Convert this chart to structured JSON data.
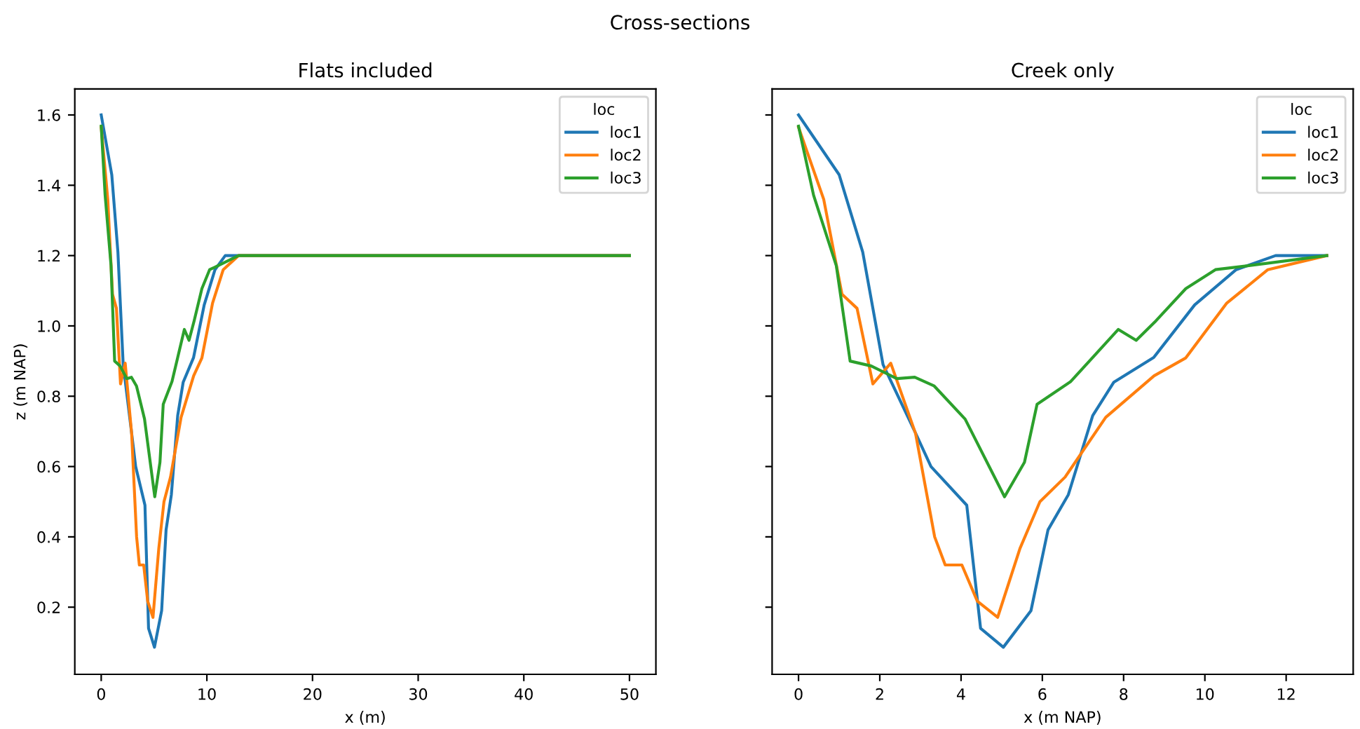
{
  "chart_data": [
    {
      "type": "line",
      "title": "Cross-sections",
      "subtitle": "Flats included",
      "xlabel": "x (m)",
      "ylabel": "z (m NAP)",
      "legend_title": "loc",
      "legend": "top right",
      "xlim": [
        -2.5,
        52.5
      ],
      "xticks": [
        0,
        10,
        20,
        30,
        40,
        50
      ],
      "ylim": [
        0.009,
        1.674
      ],
      "yticks": [
        0.2,
        0.4,
        0.6,
        0.8,
        {
          "value": 1,
          "label": "1.0"
        },
        1.2,
        1.4,
        1.6
      ],
      "series": [
        {
          "name": "loc1",
          "color": "#1f77b4",
          "x": [
            0,
            1.0,
            1.58,
            2.08,
            2.86,
            3.26,
            4.14,
            4.48,
            5.04,
            5.72,
            6.14,
            6.64,
            7.24,
            7.76,
            8.74,
            9.75,
            10.77,
            11.74,
            13.0,
            50
          ],
          "values": [
            1.6,
            1.43,
            1.21,
            0.89,
            0.7,
            0.6,
            0.49,
            0.14,
            0.086,
            0.19,
            0.42,
            0.52,
            0.745,
            0.84,
            0.91,
            1.06,
            1.16,
            1.2,
            1.2,
            1.2
          ]
        },
        {
          "name": "loc2",
          "color": "#ff7f0e",
          "x": [
            0,
            0.62,
            1.07,
            1.44,
            1.83,
            2.27,
            2.88,
            3.35,
            3.61,
            4.02,
            4.4,
            4.9,
            5.45,
            5.94,
            6.56,
            7.56,
            8.75,
            9.53,
            10.54,
            11.55,
            13.0,
            50
          ],
          "values": [
            1.565,
            1.36,
            1.09,
            1.05,
            0.835,
            0.894,
            0.694,
            0.4,
            0.32,
            0.32,
            0.217,
            0.171,
            0.367,
            0.5,
            0.57,
            0.74,
            0.858,
            0.909,
            1.065,
            1.16,
            1.2,
            1.2
          ]
        },
        {
          "name": "loc3",
          "color": "#2ca02c",
          "x": [
            0,
            0.37,
            0.93,
            1.27,
            1.79,
            2.42,
            2.86,
            3.34,
            4.1,
            5.07,
            5.56,
            5.87,
            6.7,
            7.87,
            8.31,
            8.8,
            9.53,
            10.26,
            10.77,
            13.0,
            50
          ],
          "values": [
            1.568,
            1.372,
            1.171,
            0.9,
            0.886,
            0.85,
            0.854,
            0.829,
            0.735,
            0.514,
            0.612,
            0.777,
            0.842,
            0.99,
            0.959,
            1.015,
            1.106,
            1.16,
            1.167,
            1.2,
            1.2
          ]
        }
      ]
    },
    {
      "type": "line",
      "subtitle": "Creek only",
      "xlabel": "x (m NAP)",
      "legend_title": "loc",
      "legend": "top right",
      "tick_labels": "x",
      "xlim": [
        -0.65,
        13.65
      ],
      "xticks": [
        0,
        2,
        4,
        6,
        8,
        10,
        12
      ],
      "ylim": [
        0.009,
        1.674
      ],
      "yticks": [
        0.2,
        0.4,
        0.6,
        0.8,
        1,
        1.2,
        1.4,
        1.6
      ],
      "series": [
        {
          "name": "loc1",
          "color": "#1f77b4",
          "x": [
            0,
            1.0,
            1.58,
            2.08,
            2.86,
            3.26,
            4.14,
            4.48,
            5.04,
            5.72,
            6.14,
            6.64,
            7.24,
            7.76,
            8.74,
            9.75,
            10.77,
            11.74,
            13.0
          ],
          "values": [
            1.6,
            1.43,
            1.21,
            0.89,
            0.7,
            0.6,
            0.49,
            0.14,
            0.086,
            0.19,
            0.42,
            0.52,
            0.745,
            0.84,
            0.91,
            1.06,
            1.16,
            1.2,
            1.2
          ]
        },
        {
          "name": "loc2",
          "color": "#ff7f0e",
          "x": [
            0,
            0.62,
            1.07,
            1.44,
            1.83,
            2.27,
            2.88,
            3.35,
            3.61,
            4.02,
            4.4,
            4.9,
            5.45,
            5.94,
            6.56,
            7.56,
            8.75,
            9.53,
            10.54,
            11.55,
            13.0
          ],
          "values": [
            1.565,
            1.36,
            1.09,
            1.05,
            0.835,
            0.894,
            0.694,
            0.4,
            0.32,
            0.32,
            0.217,
            0.171,
            0.367,
            0.5,
            0.57,
            0.74,
            0.858,
            0.909,
            1.065,
            1.16,
            1.2
          ]
        },
        {
          "name": "loc3",
          "color": "#2ca02c",
          "x": [
            0,
            0.37,
            0.93,
            1.27,
            1.79,
            2.42,
            2.86,
            3.34,
            4.1,
            5.07,
            5.56,
            5.87,
            6.7,
            7.87,
            8.31,
            8.8,
            9.53,
            10.26,
            10.77,
            13.0
          ],
          "values": [
            1.568,
            1.372,
            1.171,
            0.9,
            0.886,
            0.85,
            0.854,
            0.829,
            0.735,
            0.514,
            0.612,
            0.777,
            0.842,
            0.99,
            0.959,
            1.015,
            1.106,
            1.16,
            1.167,
            1.2
          ]
        }
      ]
    }
  ]
}
